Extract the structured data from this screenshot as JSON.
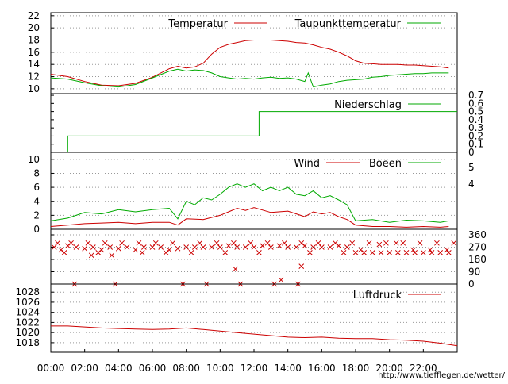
{
  "chart_data": [
    {
      "type": "line",
      "panel": "temperature",
      "ylim": [
        9,
        23
      ],
      "yticks": [
        "10",
        "12",
        "14",
        "16",
        "18",
        "20",
        "22"
      ],
      "grid": true,
      "legend_placement": "top",
      "series": [
        {
          "name": "Temperatur",
          "color": "#cc0000",
          "x": [
            0,
            1,
            2,
            3,
            4,
            5,
            6,
            7,
            7.5,
            8,
            8.5,
            9,
            9.5,
            10,
            10.5,
            11,
            11.5,
            12,
            12.5,
            13,
            13.5,
            14,
            14.5,
            15,
            15.5,
            16,
            16.5,
            17,
            17.5,
            18,
            18.5,
            19,
            19.5,
            20,
            20.5,
            21,
            21.5,
            22,
            22.5,
            23,
            23.5
          ],
          "y": [
            12.4,
            12.0,
            11.2,
            10.6,
            10.5,
            10.9,
            11.9,
            13.3,
            13.7,
            13.4,
            13.6,
            14.2,
            15.7,
            16.8,
            17.3,
            17.6,
            17.9,
            18.0,
            18.0,
            18.0,
            17.9,
            17.8,
            17.6,
            17.5,
            17.2,
            16.8,
            16.5,
            16.0,
            15.4,
            14.6,
            14.2,
            14.1,
            14.0,
            14.0,
            14.0,
            13.9,
            13.9,
            13.8,
            13.7,
            13.6,
            13.4
          ]
        },
        {
          "name": "Taupunkttemperatur",
          "color": "#00aa00",
          "x": [
            0,
            1,
            2,
            3,
            4,
            5,
            6,
            7,
            7.5,
            8,
            8.5,
            9,
            9.5,
            10,
            10.5,
            11,
            11.5,
            12,
            12.5,
            13,
            13.5,
            14,
            14.5,
            15,
            15.2,
            15.5,
            16,
            16.5,
            17,
            17.5,
            18,
            18.5,
            19,
            19.5,
            20,
            20.5,
            21,
            21.5,
            22,
            22.5,
            23,
            23.5
          ],
          "y": [
            11.8,
            11.6,
            11.0,
            10.5,
            10.3,
            10.7,
            11.8,
            12.9,
            13.2,
            12.9,
            13.1,
            13.0,
            12.6,
            12.0,
            11.8,
            11.6,
            11.7,
            11.6,
            11.8,
            11.9,
            11.7,
            11.8,
            11.6,
            11.2,
            12.6,
            10.3,
            10.6,
            10.8,
            11.2,
            11.4,
            11.5,
            11.6,
            11.9,
            12.0,
            12.2,
            12.3,
            12.4,
            12.5,
            12.5,
            12.6,
            12.6,
            12.6
          ]
        }
      ]
    },
    {
      "type": "line",
      "panel": "precipitation",
      "ylim": [
        0,
        0.7
      ],
      "yticks": [
        "0",
        "0.1",
        "0.2",
        "0.3",
        "0.4",
        "0.5",
        "0.6",
        "0.7"
      ],
      "grid": false,
      "legend_placement": "top-right",
      "series": [
        {
          "name": "Niederschlag",
          "color": "#00aa00",
          "x": [
            1.0,
            1.0,
            12.3,
            12.3,
            24
          ],
          "y": [
            0,
            0.2,
            0.2,
            0.5,
            0.5
          ]
        }
      ]
    },
    {
      "type": "line",
      "panel": "wind",
      "ylim": [
        0,
        11
      ],
      "yticks": [
        "0",
        "2",
        "4",
        "6",
        "8",
        "10"
      ],
      "right_labels": [
        "4",
        "5"
      ],
      "grid": true,
      "legend_placement": "top-right",
      "series": [
        {
          "name": "Wind",
          "color": "#cc0000",
          "x": [
            0,
            1,
            2,
            3,
            4,
            5,
            6,
            7,
            7.5,
            8,
            9,
            10,
            10.5,
            11,
            11.5,
            12,
            13,
            14,
            15,
            15.5,
            16,
            16.5,
            17,
            17.5,
            18,
            19,
            20,
            21,
            22,
            23,
            23.5
          ],
          "y": [
            0.4,
            0.6,
            0.8,
            0.9,
            1.0,
            0.8,
            1.0,
            1.0,
            0.6,
            1.5,
            1.4,
            2.0,
            2.5,
            3.0,
            2.7,
            3.1,
            2.4,
            2.6,
            1.8,
            2.5,
            2.2,
            2.4,
            1.8,
            1.4,
            0.6,
            0.4,
            0.4,
            0.3,
            0.4,
            0.3,
            0.4
          ]
        },
        {
          "name": "Boeen",
          "color": "#00aa00",
          "x": [
            0,
            1,
            2,
            3,
            4,
            5,
            6,
            7,
            7.5,
            8,
            8.5,
            9,
            9.5,
            10,
            10.5,
            11,
            11.5,
            12,
            12.5,
            13,
            13.5,
            14,
            14.5,
            15,
            15.5,
            16,
            16.5,
            17,
            17.5,
            18,
            19,
            20,
            21,
            22,
            23,
            23.5
          ],
          "y": [
            1.2,
            1.6,
            2.4,
            2.2,
            2.8,
            2.5,
            2.8,
            3.0,
            1.5,
            4.0,
            3.5,
            4.5,
            4.2,
            5.0,
            6.0,
            6.5,
            6.0,
            6.5,
            5.5,
            6.0,
            5.5,
            6.0,
            5.0,
            4.8,
            5.5,
            4.5,
            4.8,
            4.2,
            3.5,
            1.2,
            1.4,
            1.0,
            1.3,
            1.2,
            1.0,
            1.2
          ]
        }
      ]
    },
    {
      "type": "scatter",
      "panel": "wind_direction",
      "ylim": [
        0,
        360
      ],
      "yticks": [
        "0",
        "90",
        "180",
        "270",
        "360"
      ],
      "grid": true,
      "series": [
        {
          "name": "",
          "color": "#cc0000",
          "x": [
            0.2,
            0.6,
            1.0,
            1.5,
            2.0,
            2.5,
            3.0,
            3.5,
            4.0,
            4.5,
            5.0,
            5.5,
            6.0,
            6.5,
            7.0,
            7.5,
            8.0,
            8.5,
            9.0,
            9.5,
            10.0,
            10.5,
            11.0,
            11.5,
            12.0,
            12.5,
            13.0,
            13.5,
            14.0,
            14.5,
            15.0,
            15.5,
            16.0,
            16.5,
            17.0,
            17.5,
            18.0,
            18.5,
            19.0,
            19.5,
            20.0,
            20.5,
            21.0,
            21.5,
            22.0,
            22.5,
            23.0,
            23.5,
            0.4,
            1.2,
            2.2,
            3.2,
            4.2,
            5.2,
            6.2,
            7.2,
            8.8,
            9.8,
            10.8,
            11.8,
            12.8,
            13.8,
            14.8,
            15.8,
            16.8,
            17.8,
            18.8,
            19.8,
            20.8,
            21.8,
            22.8,
            23.8,
            1.4,
            3.8,
            7.8,
            9.2,
            11.2,
            13.2,
            14.6,
            0.8,
            2.8,
            6.8,
            8.3,
            10.3,
            12.3,
            15.3,
            17.3,
            2.4,
            3.6,
            5.4,
            10.9,
            13.6,
            14.8,
            18.3,
            19.4,
            20.4,
            21.4,
            22.4,
            23.4
          ],
          "y": [
            270,
            250,
            280,
            270,
            260,
            270,
            250,
            270,
            260,
            270,
            250,
            270,
            270,
            270,
            250,
            260,
            270,
            270,
            270,
            270,
            270,
            280,
            270,
            270,
            270,
            280,
            270,
            280,
            270,
            270,
            280,
            270,
            270,
            270,
            280,
            270,
            230,
            230,
            230,
            230,
            230,
            230,
            230,
            230,
            230,
            230,
            230,
            230,
            300,
            300,
            300,
            300,
            300,
            300,
            300,
            300,
            300,
            300,
            300,
            300,
            300,
            300,
            300,
            300,
            300,
            300,
            300,
            300,
            300,
            300,
            300,
            300,
            0,
            0,
            0,
            0,
            0,
            0,
            0,
            230,
            230,
            230,
            230,
            230,
            230,
            230,
            230,
            210,
            210,
            230,
            110,
            30,
            130,
            250,
            290,
            300,
            250,
            250,
            250
          ]
        }
      ]
    },
    {
      "type": "line",
      "panel": "pressure",
      "ylim": [
        1016,
        1029
      ],
      "yticks": [
        "1018",
        "1020",
        "1022",
        "1024",
        "1026",
        "1028"
      ],
      "grid": true,
      "legend_placement": "top-right",
      "series": [
        {
          "name": "Luftdruck",
          "color": "#cc0000",
          "x": [
            0,
            1,
            2,
            3,
            4,
            5,
            6,
            7,
            8,
            9,
            10,
            11,
            12,
            13,
            14,
            15,
            16,
            17,
            18,
            19,
            20,
            21,
            22,
            23,
            24
          ],
          "y": [
            1021.3,
            1021.3,
            1021.1,
            1020.9,
            1020.8,
            1020.7,
            1020.6,
            1020.7,
            1020.9,
            1020.6,
            1020.3,
            1020.0,
            1019.7,
            1019.4,
            1019.1,
            1019.0,
            1019.1,
            1018.9,
            1018.8,
            1018.8,
            1018.6,
            1018.5,
            1018.3,
            1017.9,
            1017.4
          ]
        }
      ]
    }
  ],
  "x_axis": {
    "labels": [
      "00:00",
      "02:00",
      "04:00",
      "06:00",
      "08:00",
      "10:00",
      "12:00",
      "14:00",
      "16:00",
      "18:00",
      "20:00",
      "22:00"
    ]
  },
  "footer_url": "http://www.tiefflegen.de/wetter/"
}
